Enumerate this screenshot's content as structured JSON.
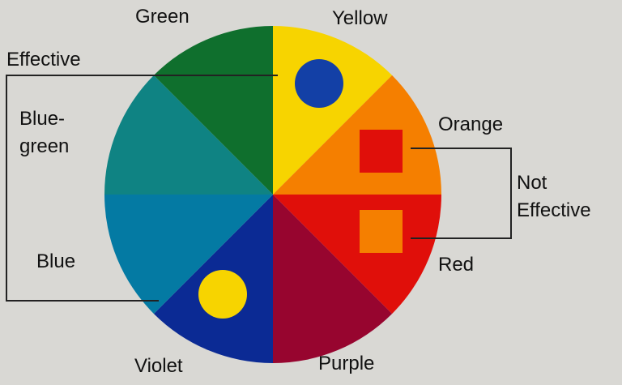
{
  "wheel": {
    "segments": [
      {
        "name": "Yellow",
        "color": "#f7d400"
      },
      {
        "name": "Orange",
        "color": "#f57f00"
      },
      {
        "name": "Red",
        "color": "#e00f0a"
      },
      {
        "name": "Purple",
        "color": "#97052f"
      },
      {
        "name": "Violet",
        "color": "#0b2a94"
      },
      {
        "name": "Blue",
        "color": "#047aa3"
      },
      {
        "name": "Blue-green",
        "color": "#0f8383"
      },
      {
        "name": "Green",
        "color": "#0f6f2d"
      }
    ]
  },
  "labels": {
    "green": "Green",
    "yellow": "Yellow",
    "effective": "Effective",
    "blue_green_line1": "Blue-",
    "blue_green_line2": "green",
    "orange": "Orange",
    "not_effective_line1": "Not",
    "not_effective_line2": "Effective",
    "blue": "Blue",
    "red": "Red",
    "violet": "Violet",
    "purple": "Purple"
  },
  "markers": {
    "blue_circle_color": "#1340a6",
    "yellow_circle_color": "#f7d400",
    "red_square_color": "#e00f0a",
    "orange_square_color": "#f57f00"
  }
}
